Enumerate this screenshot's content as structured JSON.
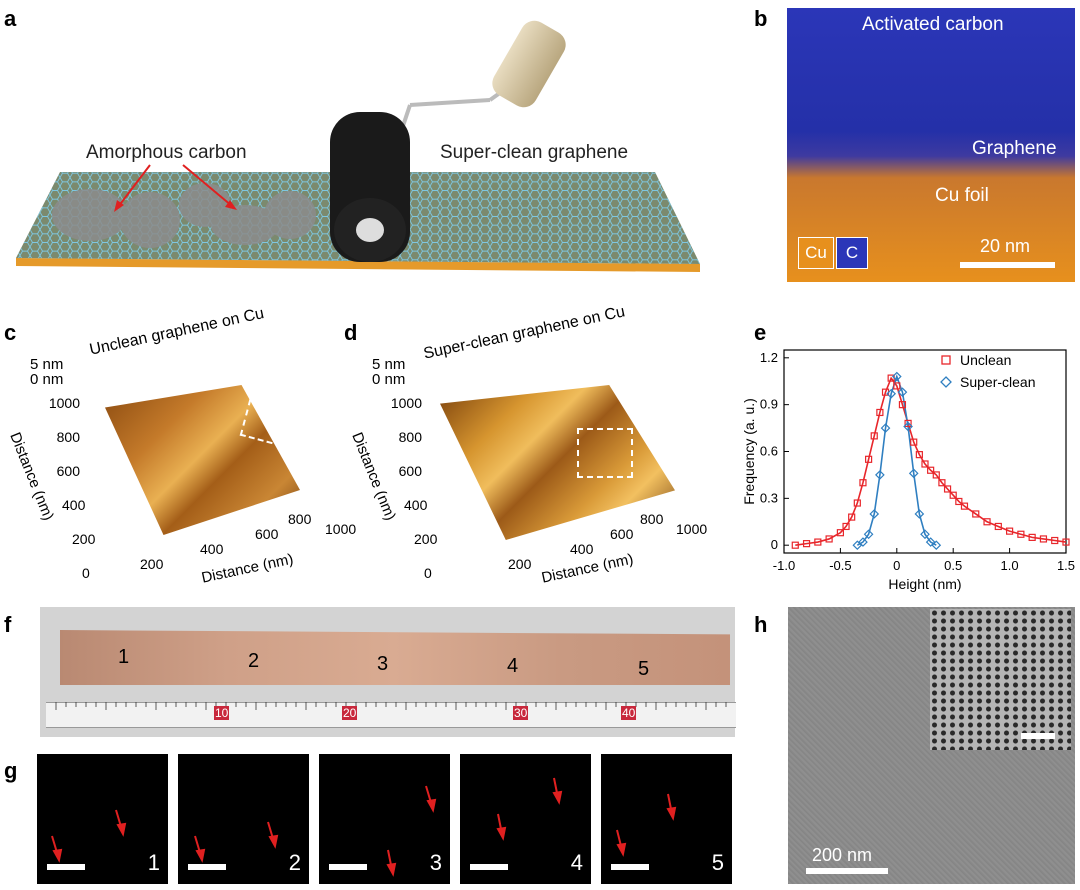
{
  "panels": {
    "a": {
      "label": "a",
      "amorphous": "Amorphous carbon",
      "superclean": "Super-clean graphene"
    },
    "b": {
      "label": "b",
      "activated": "Activated carbon",
      "graphene": "Graphene",
      "cufoil": "Cu foil",
      "legend_cu": "Cu",
      "legend_c": "C",
      "scale": "20 nm"
    },
    "c": {
      "label": "c",
      "title": "Unclean graphene on Cu",
      "z_top": "5 nm",
      "z_bottom": "0 nm",
      "y_label": "Distance (nm)",
      "x_label": "Distance (nm)",
      "y_ticks": [
        "1000",
        "800",
        "600",
        "400",
        "200",
        "0"
      ],
      "x_ticks": [
        "200",
        "400",
        "600",
        "800",
        "1000"
      ]
    },
    "d": {
      "label": "d",
      "title": "Super-clean graphene on Cu",
      "z_top": "5 nm",
      "z_bottom": "0 nm",
      "y_label": "Distance (nm)",
      "x_label": "Distance (nm)",
      "y_ticks": [
        "1000",
        "800",
        "600",
        "400",
        "200",
        "0"
      ],
      "x_ticks": [
        "200",
        "400",
        "600",
        "800",
        "1000"
      ]
    },
    "f": {
      "label": "f",
      "numbers": [
        "1",
        "2",
        "3",
        "4",
        "5"
      ],
      "ruler_big": [
        "10",
        "20",
        "30",
        "40"
      ]
    },
    "g": {
      "label": "g",
      "numbers": [
        "1",
        "2",
        "3",
        "4",
        "5"
      ]
    },
    "h": {
      "label": "h",
      "scale": "200 nm"
    }
  },
  "chart_data": {
    "type": "scatter",
    "label": "e",
    "xlabel": "Height (nm)",
    "ylabel": "Frequency (a. u.)",
    "xlim": [
      -1.0,
      1.5
    ],
    "ylim": [
      -0.05,
      1.25
    ],
    "x_ticks": [
      -1.0,
      -0.5,
      0,
      0.5,
      1.0,
      1.5
    ],
    "x_tick_labels": [
      "-1.0",
      "-0.5",
      "0",
      "0.5",
      "1.0",
      "1.5"
    ],
    "y_ticks": [
      0,
      0.3,
      0.6,
      0.9,
      1.2
    ],
    "y_tick_labels": [
      "0",
      "0.3",
      "0.6",
      "0.9",
      "1.2"
    ],
    "legend": "top-right",
    "series": [
      {
        "name": "Unclean",
        "marker": "square",
        "color": "#e8262b",
        "x": [
          -0.9,
          -0.8,
          -0.7,
          -0.6,
          -0.5,
          -0.45,
          -0.4,
          -0.35,
          -0.3,
          -0.25,
          -0.2,
          -0.15,
          -0.1,
          -0.05,
          0,
          0.05,
          0.1,
          0.15,
          0.2,
          0.25,
          0.3,
          0.35,
          0.4,
          0.45,
          0.5,
          0.55,
          0.6,
          0.7,
          0.8,
          0.9,
          1.0,
          1.1,
          1.2,
          1.3,
          1.4,
          1.5
        ],
        "y": [
          0.0,
          0.01,
          0.02,
          0.04,
          0.08,
          0.12,
          0.18,
          0.27,
          0.4,
          0.55,
          0.7,
          0.85,
          0.98,
          1.07,
          1.02,
          0.9,
          0.78,
          0.66,
          0.58,
          0.52,
          0.48,
          0.45,
          0.4,
          0.36,
          0.32,
          0.28,
          0.25,
          0.2,
          0.15,
          0.12,
          0.09,
          0.07,
          0.05,
          0.04,
          0.03,
          0.02
        ]
      },
      {
        "name": "Super-clean",
        "marker": "diamond",
        "color": "#2f7fc1",
        "x": [
          -0.35,
          -0.3,
          -0.25,
          -0.2,
          -0.15,
          -0.1,
          -0.05,
          0,
          0.05,
          0.1,
          0.15,
          0.2,
          0.25,
          0.3,
          0.35
        ],
        "y": [
          0.0,
          0.02,
          0.07,
          0.2,
          0.45,
          0.75,
          0.97,
          1.08,
          0.98,
          0.76,
          0.46,
          0.2,
          0.07,
          0.02,
          0.0
        ]
      }
    ]
  }
}
